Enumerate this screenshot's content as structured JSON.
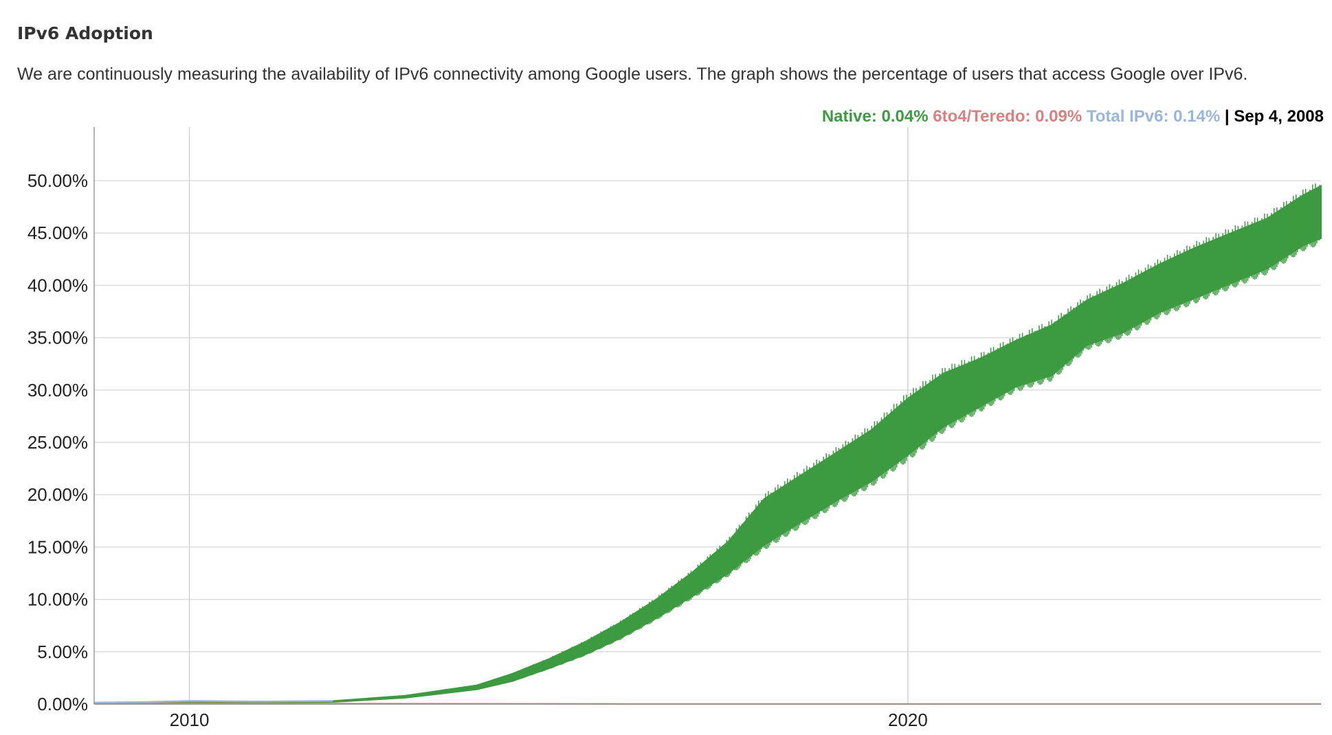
{
  "page": {
    "title": "IPv6 Adoption",
    "description": "We are continuously measuring the availability of IPv6 connectivity among Google users. The graph shows the percentage of users that access Google over IPv6."
  },
  "legend": {
    "native": "Native: 0.04%",
    "teredo": "6to4/Teredo: 0.09%",
    "total": "Total IPv6: 0.14%",
    "separator": "|",
    "date": "Sep 4, 2008"
  },
  "colors": {
    "native": "#3d9a40",
    "teredo": "#d98080",
    "total": "#9ab4dc",
    "text": "#333333",
    "grid": "#dddddd"
  },
  "chart_data": {
    "type": "area",
    "x_range": [
      "2008-09-04",
      "2025-10-01"
    ],
    "ylim": [
      0,
      55
    ],
    "y_ticks": [
      "0.00%",
      "5.00%",
      "10.00%",
      "15.00%",
      "20.00%",
      "25.00%",
      "30.00%",
      "35.00%",
      "40.00%",
      "45.00%",
      "50.00%"
    ],
    "y_tick_values": [
      0,
      5,
      10,
      15,
      20,
      25,
      30,
      35,
      40,
      45,
      50
    ],
    "x_ticks": [
      "2010",
      "2020"
    ],
    "x_tick_values": [
      "2010-01-01",
      "2020-01-01"
    ],
    "grid": true,
    "series": [
      {
        "name": "Native",
        "x": [
          "2008-09-04",
          "2010-01-01",
          "2012-01-01",
          "2013-01-01",
          "2014-01-01",
          "2014-07-01",
          "2015-01-01",
          "2015-07-01",
          "2016-01-01",
          "2016-07-01",
          "2017-01-01",
          "2017-07-01",
          "2018-01-01",
          "2018-07-01",
          "2019-01-01",
          "2019-07-01",
          "2020-01-01",
          "2020-07-01",
          "2021-01-01",
          "2021-07-01",
          "2022-01-01",
          "2022-07-01",
          "2023-01-01",
          "2023-07-01",
          "2024-01-01",
          "2024-07-01",
          "2025-01-01",
          "2025-07-01",
          "2025-10-01"
        ],
        "low": [
          0.04,
          0.1,
          0.2,
          0.6,
          1.4,
          2.2,
          3.4,
          4.7,
          6.3,
          8.2,
          10.3,
          12.5,
          15.2,
          17.3,
          19.4,
          21.3,
          23.8,
          26.5,
          28.4,
          30.3,
          31.4,
          34.3,
          35.5,
          37.4,
          38.8,
          40.2,
          41.6,
          43.8,
          44.5
        ],
        "high": [
          0.04,
          0.2,
          0.3,
          0.8,
          1.8,
          2.9,
          4.3,
          5.9,
          7.8,
          10.0,
          12.6,
          15.5,
          19.6,
          21.8,
          24.0,
          26.2,
          29.2,
          31.6,
          33.0,
          34.7,
          36.2,
          38.6,
          40.2,
          42.0,
          43.6,
          45.0,
          46.4,
          48.6,
          49.5
        ]
      },
      {
        "name": "6to4/Teredo",
        "x": [
          "2008-09-04",
          "2012-01-01",
          "2016-01-01",
          "2020-01-01",
          "2025-10-01"
        ],
        "values": [
          0.09,
          0.05,
          0.02,
          0.01,
          0.01
        ]
      },
      {
        "name": "Total IPv6",
        "x": [
          "2008-09-04",
          "2009-06-01",
          "2010-01-01",
          "2011-01-01",
          "2012-01-01"
        ],
        "values": [
          0.14,
          0.2,
          0.3,
          0.25,
          0.3
        ]
      }
    ]
  }
}
